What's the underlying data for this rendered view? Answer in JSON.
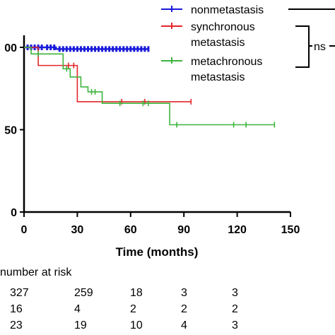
{
  "chart_data": {
    "type": "line",
    "subtype": "kaplan-meier",
    "xlabel": "Time (months)",
    "x_ticks": [
      "0",
      "30",
      "60",
      "90",
      "120",
      "150"
    ],
    "y_ticks": [
      "0",
      "50",
      "100"
    ],
    "y_tick_labels_visible": [
      "0",
      "50",
      "00"
    ],
    "xlim": [
      0,
      150
    ],
    "ylim": [
      0,
      100
    ],
    "legend_position": "top-right",
    "series": [
      {
        "name": "nonmetastasis",
        "color": "#1a1adb",
        "steps": [
          [
            0,
            100
          ],
          [
            18,
            100
          ],
          [
            18,
            99
          ],
          [
            70,
            99
          ]
        ],
        "censor": [
          2,
          4,
          6,
          8,
          10,
          13,
          15,
          17,
          20,
          22,
          24,
          26,
          28,
          30,
          32,
          34,
          36,
          38,
          40,
          42,
          44,
          46,
          48,
          50,
          52,
          54,
          56,
          58,
          60,
          62,
          64,
          66,
          68,
          70
        ]
      },
      {
        "name": "synchronous metastasis",
        "color": "#e3262a",
        "steps": [
          [
            0,
            100
          ],
          [
            8,
            100
          ],
          [
            8,
            89
          ],
          [
            23,
            89
          ],
          [
            23,
            89
          ],
          [
            30,
            89
          ],
          [
            30,
            67
          ],
          [
            94,
            67
          ]
        ],
        "censor": [
          22,
          25,
          28,
          55,
          68,
          94
        ]
      },
      {
        "name": "metachronous metastasis",
        "color": "#3cb43c",
        "steps": [
          [
            0,
            100
          ],
          [
            4,
            100
          ],
          [
            4,
            96
          ],
          [
            22,
            96
          ],
          [
            22,
            87
          ],
          [
            26,
            87
          ],
          [
            26,
            82
          ],
          [
            32,
            82
          ],
          [
            32,
            76
          ],
          [
            36,
            76
          ],
          [
            36,
            73
          ],
          [
            44,
            73
          ],
          [
            44,
            66
          ],
          [
            82,
            66
          ],
          [
            82,
            53
          ],
          [
            141,
            53
          ]
        ],
        "censor": [
          8,
          24,
          38,
          40,
          54,
          67,
          70,
          86,
          118,
          125,
          141
        ]
      }
    ],
    "annotation": "ns"
  },
  "risk_table": {
    "title": "number at risk",
    "rows": [
      [
        "327",
        "259",
        "18",
        "3",
        "3"
      ],
      [
        "16",
        "4",
        "2",
        "2",
        "2"
      ],
      [
        "23",
        "19",
        "10",
        "4",
        "3"
      ]
    ]
  }
}
